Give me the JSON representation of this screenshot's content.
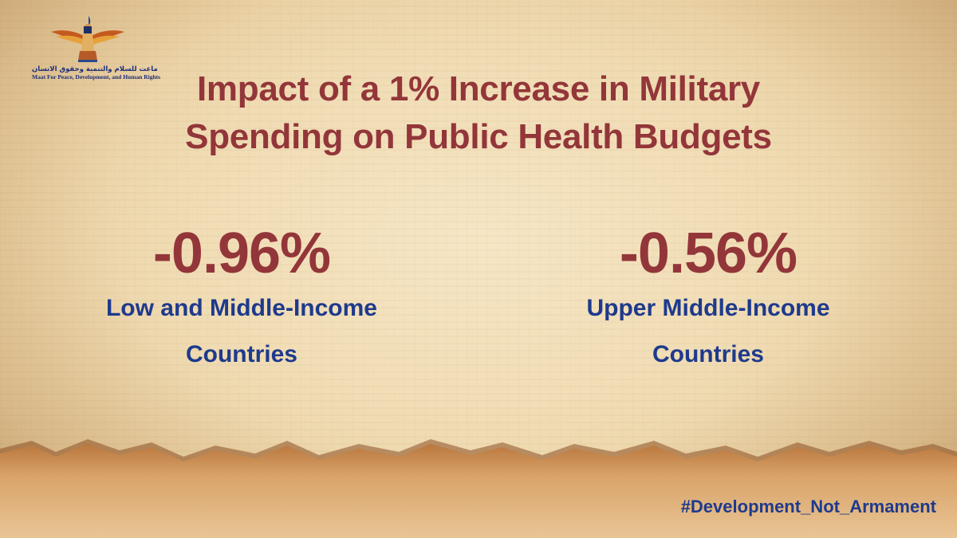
{
  "logo": {
    "arabic_text": "ماعت للسلام والتنمية وحقوق الانسان",
    "english_text": "Maat For Peace, Development, and Human Rights"
  },
  "title": {
    "line1": "Impact of a 1% Increase in Military",
    "line2": "Spending on Public Health Budgets"
  },
  "stats": [
    {
      "value": "-0.96%",
      "label_line1": "Low and Middle-Income",
      "label_line2": "Countries"
    },
    {
      "value": "-0.56%",
      "label_line1": "Upper Middle-Income",
      "label_line2": "Countries"
    }
  ],
  "hashtag": "#Development_Not_Armament",
  "colors": {
    "title": "#93363a",
    "label": "#1e3a8c",
    "paper": "#f0dcb4",
    "torn_edge": "#c98f52"
  },
  "icons": {
    "logo": "winged-goddess-maat-icon"
  }
}
